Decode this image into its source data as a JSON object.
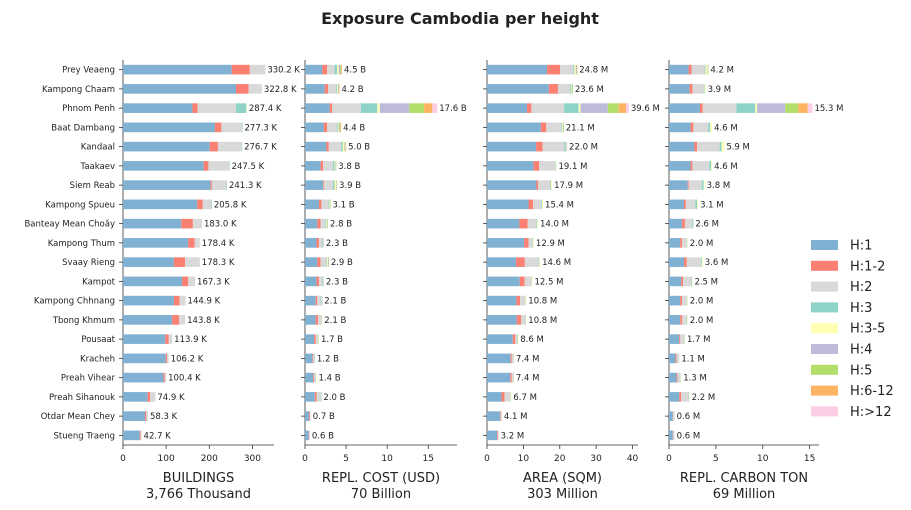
{
  "chart_data": {
    "type": "bar",
    "title": "Exposure Cambodia per height",
    "categories": [
      "Prey Veaeng",
      "Kampong Chaam",
      "Phnom Penh",
      "Baat Dambang",
      "Kandaal",
      "Taakaev",
      "Siem Reab",
      "Kampong Spueu",
      "Banteay Mean Choăy",
      "Kampong Thum",
      "Svaay Rieng",
      "Kampot",
      "Kampong Chhnang",
      "Tbong Khmum",
      "Pousaat",
      "Kracheh",
      "Preah Vihear",
      "Preah Sihanouk",
      "Otdar Mean Chey",
      "Stueng Traeng"
    ],
    "legend": {
      "placement": "right",
      "entries": [
        {
          "name": "H:1",
          "color": "#80b1d3"
        },
        {
          "name": "H:1-2",
          "color": "#fb8072"
        },
        {
          "name": "H:2",
          "color": "#d9d9d9"
        },
        {
          "name": "H:3",
          "color": "#8dd3c7"
        },
        {
          "name": "H:3-5",
          "color": "#ffffb3"
        },
        {
          "name": "H:4",
          "color": "#bebada"
        },
        {
          "name": "H:5",
          "color": "#b3de69"
        },
        {
          "name": "H:6-12",
          "color": "#fdb462"
        },
        {
          "name": "H:>12",
          "color": "#fccde5"
        }
      ]
    },
    "panels": [
      {
        "xlabel": "BUILDINGS",
        "total_label": "3,766 Thousand",
        "xlim": [
          0,
          350
        ],
        "xticks": [
          "0",
          "100",
          "200",
          "300"
        ],
        "labels": [
          "330.2 K",
          "322.8 K",
          "287.4 K",
          "277.3 K",
          "276.7 K",
          "247.5 K",
          "241.3 K",
          "205.8 K",
          "183.0 K",
          "178.4 K",
          "178.3 K",
          "167.3 K",
          "144.9 K",
          "143.8 K",
          "113.9 K",
          "106.2 K",
          "100.4 K",
          "74.9 K",
          "58.3 K",
          "42.7 K"
        ],
        "values": [
          [
            252,
            42,
            36,
            0,
            0,
            0,
            0,
            0,
            0
          ],
          [
            262,
            29,
            31,
            0,
            0,
            0,
            0,
            0,
            0
          ],
          [
            161,
            12,
            89,
            24,
            1,
            0,
            0,
            0,
            0
          ],
          [
            213,
            15,
            48,
            1,
            0,
            0,
            0,
            0,
            0
          ],
          [
            201,
            19,
            55,
            1,
            0,
            0,
            0,
            0,
            0
          ],
          [
            187,
            11,
            48,
            1,
            0,
            0,
            0,
            0,
            0
          ],
          [
            203,
            3,
            34,
            1,
            0,
            0,
            0,
            0,
            0
          ],
          [
            172,
            13,
            20,
            1,
            0,
            0,
            0,
            0,
            0
          ],
          [
            135,
            27,
            21,
            0,
            0,
            0,
            0,
            0,
            0
          ],
          [
            151,
            15,
            12,
            0,
            0,
            0,
            0,
            0,
            0
          ],
          [
            118,
            26,
            34,
            0,
            0,
            0,
            0,
            0,
            0
          ],
          [
            137,
            14,
            16,
            0,
            0,
            0,
            0,
            0,
            0
          ],
          [
            118,
            13,
            14,
            0,
            0,
            0,
            0,
            0,
            0
          ],
          [
            114,
            16,
            14,
            0,
            0,
            0,
            0,
            0,
            0
          ],
          [
            98,
            8,
            8,
            0,
            0,
            0,
            0,
            0,
            0
          ],
          [
            99,
            3,
            4,
            0,
            0,
            0,
            0,
            0,
            0
          ],
          [
            94,
            3,
            3,
            0,
            0,
            0,
            0,
            0,
            0
          ],
          [
            57,
            6,
            12,
            0,
            0,
            0,
            0,
            0,
            0
          ],
          [
            51,
            3,
            4,
            0,
            0,
            0,
            0,
            0,
            0
          ],
          [
            39,
            2,
            2,
            0,
            0,
            0,
            0,
            0,
            0
          ]
        ]
      },
      {
        "xlabel": "REPL. COST (USD)",
        "total_label": "70 Billion",
        "xlim": [
          0,
          18.5
        ],
        "xticks": [
          "0",
          "5",
          "10",
          "15"
        ],
        "labels": [
          "4.5 B",
          "4.2 B",
          "17.6 B",
          "4.4 B",
          "5.0 B",
          "3.8 B",
          "3.9 B",
          "3.1 B",
          "2.8 B",
          "2.3 B",
          "2.9 B",
          "2.3 B",
          "2.1 B",
          "2.1 B",
          "1.7 B",
          "1.2 B",
          "1.4 B",
          "2.0 B",
          "0.7 B",
          "0.6 B"
        ],
        "values": [
          [
            2.1,
            0.6,
            0.9,
            0.3,
            0.2,
            0.2,
            0.1,
            0.1,
            0
          ],
          [
            2.4,
            0.4,
            1.0,
            0.1,
            0.1,
            0.1,
            0.05,
            0.05,
            0
          ],
          [
            3.0,
            0.3,
            3.5,
            2.0,
            0.3,
            3.6,
            1.8,
            1.0,
            0.6
          ],
          [
            2.3,
            0.4,
            1.2,
            0.1,
            0.1,
            0.1,
            0.1,
            0.1,
            0
          ],
          [
            2.6,
            0.3,
            1.5,
            0.2,
            0.2,
            0.1,
            0.05,
            0.05,
            0
          ],
          [
            1.9,
            0.3,
            1.2,
            0.2,
            0.1,
            0.05,
            0.05,
            0,
            0
          ],
          [
            2.2,
            0.1,
            1.1,
            0.2,
            0.2,
            0.05,
            0.05,
            0,
            0
          ],
          [
            1.7,
            0.3,
            0.8,
            0.1,
            0.1,
            0.05,
            0.05,
            0,
            0
          ],
          [
            1.5,
            0.4,
            0.6,
            0.1,
            0.1,
            0.05,
            0.05,
            0,
            0
          ],
          [
            1.4,
            0.3,
            0.4,
            0.1,
            0.05,
            0.05,
            0,
            0,
            0
          ],
          [
            1.5,
            0.4,
            0.7,
            0.1,
            0.1,
            0.05,
            0.05,
            0,
            0
          ],
          [
            1.4,
            0.3,
            0.4,
            0.1,
            0.05,
            0.05,
            0,
            0,
            0
          ],
          [
            1.3,
            0.2,
            0.4,
            0.1,
            0.05,
            0.05,
            0,
            0,
            0
          ],
          [
            1.3,
            0.3,
            0.4,
            0.05,
            0.05,
            0,
            0,
            0,
            0
          ],
          [
            1.1,
            0.2,
            0.3,
            0.05,
            0.05,
            0,
            0,
            0,
            0
          ],
          [
            0.9,
            0.1,
            0.15,
            0.05,
            0,
            0,
            0,
            0,
            0
          ],
          [
            1.0,
            0.1,
            0.2,
            0.05,
            0.05,
            0,
            0,
            0,
            0
          ],
          [
            1.2,
            0.2,
            0.4,
            0.1,
            0.05,
            0.05,
            0,
            0,
            0
          ],
          [
            0.5,
            0.1,
            0.1,
            0,
            0,
            0,
            0,
            0,
            0
          ],
          [
            0.45,
            0.05,
            0.1,
            0,
            0,
            0,
            0,
            0,
            0
          ]
        ]
      },
      {
        "xlabel": "AREA (SQM)",
        "total_label": "303 Million",
        "xlim": [
          0,
          41.5
        ],
        "xticks": [
          "0",
          "10",
          "20",
          "30",
          "40"
        ],
        "labels": [
          "24.8 M",
          "23.6 M",
          "39.6 M",
          "21.1 M",
          "22.0 M",
          "19.1 M",
          "17.9 M",
          "15.4 M",
          "14.0 M",
          "12.9 M",
          "14.6 M",
          "12.5 M",
          "10.8 M",
          "10.8 M",
          "8.6 M",
          "7.4 M",
          "7.4 M",
          "6.7 M",
          "4.1 M",
          "3.2 M"
        ],
        "values": [
          [
            16.5,
            3.6,
            3.6,
            0.3,
            0.4,
            0.2,
            0.1,
            0.1,
            0
          ],
          [
            17.0,
            2.5,
            3.4,
            0.3,
            0.2,
            0.1,
            0.1,
            0,
            0
          ],
          [
            11.0,
            1.2,
            9.0,
            4.0,
            0.5,
            7.5,
            3.0,
            2.0,
            0.8
          ],
          [
            14.8,
            1.5,
            4.2,
            0.2,
            0.2,
            0.1,
            0.1,
            0,
            0
          ],
          [
            13.5,
            1.8,
            6.0,
            0.4,
            0.2,
            0.1,
            0,
            0,
            0
          ],
          [
            12.8,
            1.5,
            4.4,
            0.2,
            0.2,
            0,
            0,
            0,
            0
          ],
          [
            13.6,
            0.5,
            3.3,
            0.2,
            0.3,
            0,
            0,
            0,
            0
          ],
          [
            11.4,
            1.3,
            2.2,
            0.2,
            0.3,
            0,
            0,
            0,
            0
          ],
          [
            8.9,
            2.3,
            2.4,
            0.2,
            0.2,
            0,
            0,
            0,
            0
          ],
          [
            10.2,
            1.2,
            1.2,
            0.1,
            0.2,
            0,
            0,
            0,
            0
          ],
          [
            8.0,
            2.4,
            3.8,
            0.2,
            0.2,
            0,
            0,
            0,
            0
          ],
          [
            9.0,
            1.3,
            1.9,
            0.1,
            0.2,
            0,
            0,
            0,
            0
          ],
          [
            8.1,
            1.0,
            1.4,
            0.1,
            0.2,
            0,
            0,
            0,
            0
          ],
          [
            8.2,
            1.2,
            1.2,
            0.1,
            0.1,
            0,
            0,
            0,
            0
          ],
          [
            7.1,
            0.7,
            0.6,
            0.1,
            0.1,
            0,
            0,
            0,
            0
          ],
          [
            6.5,
            0.3,
            0.5,
            0.05,
            0.05,
            0,
            0,
            0,
            0
          ],
          [
            6.4,
            0.4,
            0.5,
            0.05,
            0.05,
            0,
            0,
            0,
            0
          ],
          [
            4.0,
            0.8,
            1.6,
            0.1,
            0.2,
            0,
            0,
            0,
            0
          ],
          [
            3.6,
            0.2,
            0.3,
            0,
            0,
            0,
            0,
            0,
            0
          ],
          [
            2.8,
            0.2,
            0.2,
            0,
            0,
            0,
            0,
            0,
            0
          ]
        ]
      },
      {
        "xlabel": "REPL. CARBON TON",
        "total_label": "69 Million",
        "xlim": [
          0,
          16
        ],
        "xticks": [
          "0",
          "5",
          "10",
          "15"
        ],
        "labels": [
          "4.2 M",
          "3.9 M",
          "15.3 M",
          "4.6 M",
          "5.9 M",
          "4.6 M",
          "3.8 M",
          "3.1 M",
          "2.6 M",
          "2.0 M",
          "3.6 M",
          "2.5 M",
          "2.0 M",
          "2.0 M",
          "1.7 M",
          "1.1 M",
          "1.3 M",
          "2.2 M",
          "0.6 M",
          "0.6 M"
        ],
        "values": [
          [
            2.1,
            0.3,
            1.4,
            0.1,
            0.2,
            0.05,
            0.05,
            0,
            0
          ],
          [
            2.2,
            0.3,
            1.2,
            0.1,
            0.1,
            0,
            0,
            0,
            0
          ],
          [
            3.3,
            0.3,
            3.6,
            2.0,
            0.2,
            3.0,
            1.4,
            1.0,
            0.5
          ],
          [
            2.3,
            0.3,
            1.6,
            0.2,
            0.2,
            0,
            0,
            0,
            0
          ],
          [
            2.7,
            0.3,
            2.4,
            0.2,
            0.3,
            0,
            0,
            0,
            0
          ],
          [
            2.3,
            0.2,
            1.8,
            0.2,
            0.1,
            0,
            0,
            0,
            0
          ],
          [
            2.0,
            0.1,
            1.4,
            0.2,
            0.1,
            0,
            0,
            0,
            0
          ],
          [
            1.6,
            0.2,
            1.0,
            0.2,
            0.1,
            0,
            0,
            0,
            0
          ],
          [
            1.4,
            0.3,
            0.8,
            0.1,
            0,
            0,
            0,
            0,
            0
          ],
          [
            1.2,
            0.2,
            0.5,
            0.05,
            0.05,
            0,
            0,
            0,
            0
          ],
          [
            1.6,
            0.3,
            1.5,
            0.1,
            0.1,
            0,
            0,
            0,
            0
          ],
          [
            1.3,
            0.2,
            0.9,
            0.05,
            0.05,
            0,
            0,
            0,
            0
          ],
          [
            1.2,
            0.2,
            0.5,
            0.05,
            0.05,
            0,
            0,
            0,
            0
          ],
          [
            1.2,
            0.2,
            0.5,
            0.05,
            0.05,
            0,
            0,
            0,
            0
          ],
          [
            1.1,
            0.1,
            0.4,
            0.05,
            0.05,
            0,
            0,
            0,
            0
          ],
          [
            0.7,
            0.1,
            0.3,
            0,
            0,
            0,
            0,
            0,
            0
          ],
          [
            0.8,
            0.1,
            0.3,
            0.05,
            0.05,
            0,
            0,
            0,
            0
          ],
          [
            1.1,
            0.2,
            0.8,
            0.05,
            0.05,
            0,
            0,
            0,
            0
          ],
          [
            0.4,
            0.05,
            0.15,
            0,
            0,
            0,
            0,
            0,
            0
          ],
          [
            0.4,
            0.05,
            0.15,
            0,
            0,
            0,
            0,
            0,
            0
          ]
        ]
      }
    ]
  }
}
